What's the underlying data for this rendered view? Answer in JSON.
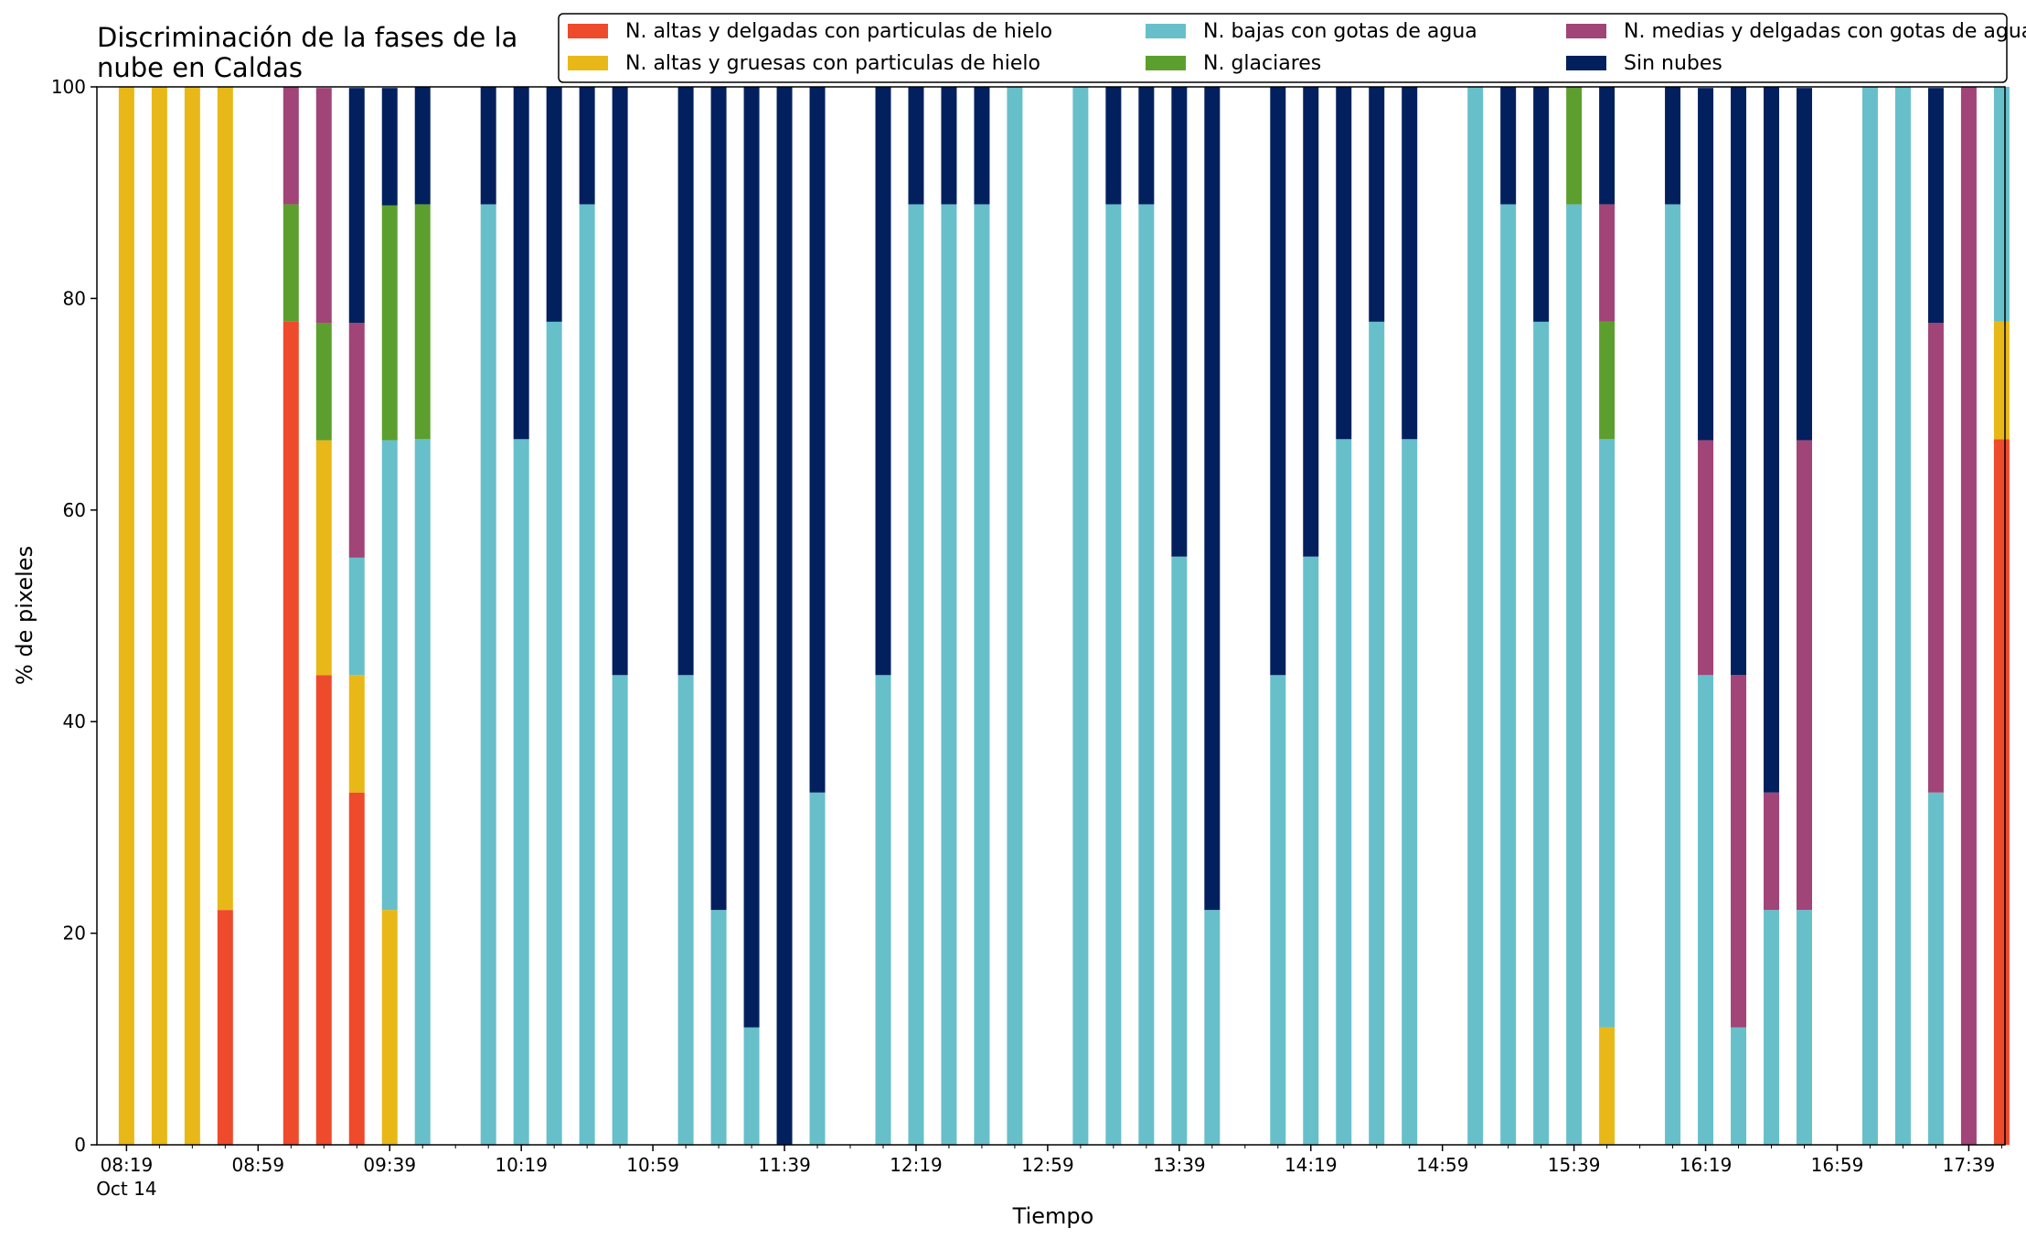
{
  "chart_data": {
    "type": "bar",
    "stacked": true,
    "title_lines": [
      "Discriminación de la fases de la",
      "nube en Caldas"
    ],
    "xlabel": "Tiempo",
    "ylabel": "% de pixeles",
    "ylim": [
      0,
      100
    ],
    "yticks": [
      0,
      20,
      40,
      60,
      80,
      100
    ],
    "xlim_minutes": [
      490,
      1070
    ],
    "x_tick_labels": [
      "08:19",
      "08:59",
      "09:39",
      "10:19",
      "10:59",
      "11:39",
      "12:19",
      "12:59",
      "13:39",
      "14:19",
      "14:59",
      "15:39",
      "16:19",
      "16:59",
      "17:39"
    ],
    "x_tick_minutes": [
      499,
      539,
      579,
      619,
      659,
      699,
      739,
      779,
      819,
      859,
      899,
      939,
      979,
      1019,
      1059
    ],
    "x_date_label": "Oct 14",
    "x_minor_tick_minutes": [
      509,
      519,
      529,
      549,
      559,
      569,
      589,
      599,
      609,
      629,
      639,
      649,
      669,
      679,
      689,
      709,
      719,
      729,
      749,
      759,
      769,
      789,
      799,
      809,
      829,
      839,
      849,
      869,
      879,
      889,
      909,
      919,
      929,
      949,
      959,
      969,
      989,
      999,
      1009,
      1029,
      1039,
      1049,
      1069
    ],
    "legend_position": "top-right",
    "bar_times": [
      "08:19",
      "08:29",
      "08:39",
      "08:49",
      "09:09",
      "09:19",
      "09:29",
      "09:39",
      "09:49",
      "10:09",
      "10:19",
      "10:29",
      "10:39",
      "10:49",
      "11:09",
      "11:19",
      "11:29",
      "11:39",
      "11:49",
      "12:09",
      "12:19",
      "12:29",
      "12:39",
      "12:49",
      "13:09",
      "13:19",
      "13:29",
      "13:39",
      "13:49",
      "14:09",
      "14:19",
      "14:29",
      "14:39",
      "14:49",
      "15:09",
      "15:19",
      "15:29",
      "15:39",
      "15:49",
      "16:09",
      "16:19",
      "16:29",
      "16:39",
      "16:49",
      "17:09",
      "17:19",
      "17:29",
      "17:39",
      "17:49"
    ],
    "series": [
      {
        "name": "N. altas y delgadas con particulas de hielo",
        "color": "#ee4a2c",
        "values": [
          0,
          0,
          0,
          22.2,
          77.8,
          44.4,
          33.3,
          0,
          0,
          0,
          0,
          0,
          0,
          0,
          0,
          0,
          0,
          0,
          0,
          0,
          0,
          0,
          0,
          0,
          0,
          0,
          0,
          0,
          0,
          0,
          0,
          0,
          0,
          0,
          0,
          0,
          0,
          0,
          0,
          0,
          0,
          0,
          0,
          0,
          0,
          0,
          0,
          0,
          66.7
        ]
      },
      {
        "name": "N. altas y gruesas con particulas de hielo",
        "color": "#e8b818",
        "values": [
          100,
          100,
          100,
          77.8,
          0,
          22.2,
          11.1,
          22.2,
          0,
          0,
          0,
          0,
          0,
          0,
          0,
          0,
          0,
          0,
          0,
          0,
          0,
          0,
          0,
          0,
          0,
          0,
          0,
          0,
          0,
          0,
          0,
          0,
          0,
          0,
          0,
          0,
          0,
          0,
          11.1,
          0,
          0,
          0,
          0,
          0,
          0,
          0,
          0,
          0,
          11.1
        ]
      },
      {
        "name": "N. bajas con gotas de agua",
        "color": "#67bfca",
        "values": [
          0,
          0,
          0,
          0,
          0,
          0,
          11.1,
          44.4,
          66.7,
          88.9,
          66.7,
          77.8,
          88.9,
          44.4,
          44.4,
          22.2,
          11.1,
          0,
          33.3,
          44.4,
          88.9,
          88.9,
          88.9,
          100,
          100,
          88.9,
          88.9,
          55.6,
          22.2,
          44.4,
          55.6,
          66.7,
          77.8,
          66.7,
          100,
          88.9,
          77.8,
          88.9,
          55.6,
          88.9,
          44.4,
          11.1,
          22.2,
          22.2,
          100,
          100,
          33.3,
          0,
          22.2
        ]
      },
      {
        "name": "N. glaciares",
        "color": "#5c9f2e",
        "values": [
          0,
          0,
          0,
          0,
          11.1,
          11.1,
          0,
          22.2,
          22.2,
          0,
          0,
          0,
          0,
          0,
          0,
          0,
          0,
          0,
          0,
          0,
          0,
          0,
          0,
          0,
          0,
          0,
          0,
          0,
          0,
          0,
          0,
          0,
          0,
          0,
          0,
          0,
          0,
          11.1,
          11.1,
          0,
          0,
          0,
          0,
          0,
          0,
          0,
          0,
          0,
          0
        ]
      },
      {
        "name": "N. medias y delgadas con gotas de agua",
        "color": "#a14478",
        "values": [
          0,
          0,
          0,
          0,
          11.1,
          22.2,
          22.2,
          0,
          0,
          0,
          0,
          0,
          0,
          0,
          0,
          0,
          0,
          0,
          0,
          0,
          0,
          0,
          0,
          0,
          0,
          0,
          0,
          0,
          0,
          0,
          0,
          0,
          0,
          0,
          0,
          0,
          0,
          0,
          11.1,
          0,
          22.2,
          33.3,
          11.1,
          44.4,
          0,
          0,
          44.4,
          100,
          0
        ]
      },
      {
        "name": "Sin nubes",
        "color": "#03205e",
        "values": [
          0,
          0,
          0,
          0,
          0,
          0,
          22.2,
          11.1,
          11.1,
          11.1,
          33.3,
          22.2,
          11.1,
          55.6,
          55.6,
          77.8,
          88.9,
          100,
          66.7,
          55.6,
          11.1,
          11.1,
          11.1,
          0,
          0,
          11.1,
          11.1,
          44.4,
          77.8,
          55.6,
          44.4,
          33.3,
          22.2,
          33.3,
          0,
          11.1,
          22.2,
          0,
          11.1,
          11.1,
          33.3,
          55.6,
          66.7,
          33.3,
          0,
          0,
          22.2,
          0,
          0
        ]
      }
    ],
    "legend_layout": [
      [
        "N. altas y delgadas con particulas de hielo",
        "N. altas y gruesas con particulas de hielo"
      ],
      [
        "N. bajas con gotas de agua",
        "N. glaciares"
      ],
      [
        "N. medias y delgadas con gotas de agua",
        "Sin nubes"
      ]
    ]
  }
}
